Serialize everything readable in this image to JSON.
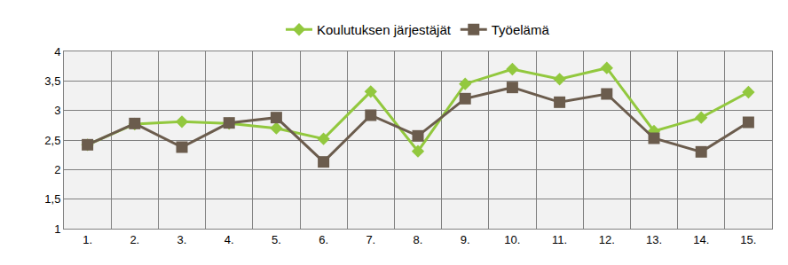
{
  "chart_data": {
    "type": "line",
    "categories": [
      "1.",
      "2.",
      "3.",
      "4.",
      "5.",
      "6.",
      "7.",
      "8.",
      "9.",
      "10.",
      "11.",
      "12.",
      "13.",
      "14.",
      "15."
    ],
    "series": [
      {
        "name": "Koulutuksen järjestäjät",
        "color": "#92c83e",
        "marker": "diamond",
        "values": [
          2.42,
          2.77,
          2.81,
          2.78,
          2.7,
          2.52,
          3.32,
          2.31,
          3.45,
          3.7,
          3.53,
          3.72,
          2.65,
          2.88,
          3.31
        ]
      },
      {
        "name": "Työelämä",
        "color": "#6b5c4d",
        "marker": "square",
        "values": [
          2.42,
          2.78,
          2.38,
          2.79,
          2.88,
          2.13,
          2.92,
          2.57,
          3.2,
          3.39,
          3.14,
          3.28,
          2.53,
          2.3,
          2.8
        ]
      }
    ],
    "ylim": [
      1,
      4
    ],
    "yticks": [
      1,
      {
        "value": 1.5,
        "label": "1,5"
      },
      2,
      {
        "value": 2.5,
        "label": "2,5"
      },
      3,
      {
        "value": 3.5,
        "label": "3,5"
      },
      4
    ],
    "grid": true,
    "legend": "top"
  }
}
